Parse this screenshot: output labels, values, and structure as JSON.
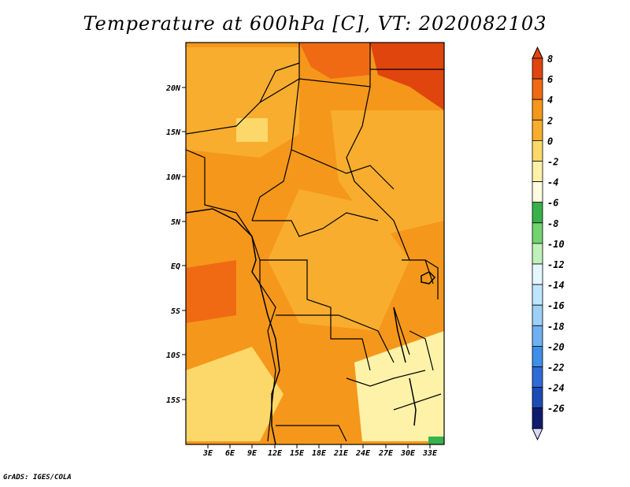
{
  "title": "Temperature at 600hPa [C], VT: 2020082103",
  "footer": "GrADS: IGES/COLA",
  "map": {
    "region": "Central Africa",
    "lon_range": [
      0,
      35
    ],
    "lat_range": [
      -20,
      24
    ],
    "x_ticks": [
      "3E",
      "6E",
      "9E",
      "12E",
      "15E",
      "18E",
      "21E",
      "24E",
      "27E",
      "30E",
      "33E"
    ],
    "y_ticks": [
      "20N",
      "15N",
      "10N",
      "5N",
      "EQ",
      "5S",
      "10S",
      "15S"
    ]
  },
  "colorbar": {
    "levels": [
      "8",
      "6",
      "4",
      "2",
      "0",
      "-2",
      "-4",
      "-6",
      "-8",
      "-10",
      "-12",
      "-14",
      "-16",
      "-18",
      "-20",
      "-22",
      "-24",
      "-26"
    ],
    "colors": [
      "#e0450e",
      "#f06a14",
      "#f5971a",
      "#f8ad2e",
      "#fcd86a",
      "#fdf2a8",
      "#fefce0",
      "#37b24a",
      "#72d46e",
      "#bff1bb",
      "#e4f7ff",
      "#bfe6ff",
      "#9dd0f7",
      "#6fb1f0",
      "#3e8fe7",
      "#2d6bd8",
      "#1d4ab5",
      "#101b6e"
    ],
    "top_triangle_color": "#e0450e",
    "bottom_triangle_color": "#d6d8ff"
  }
}
